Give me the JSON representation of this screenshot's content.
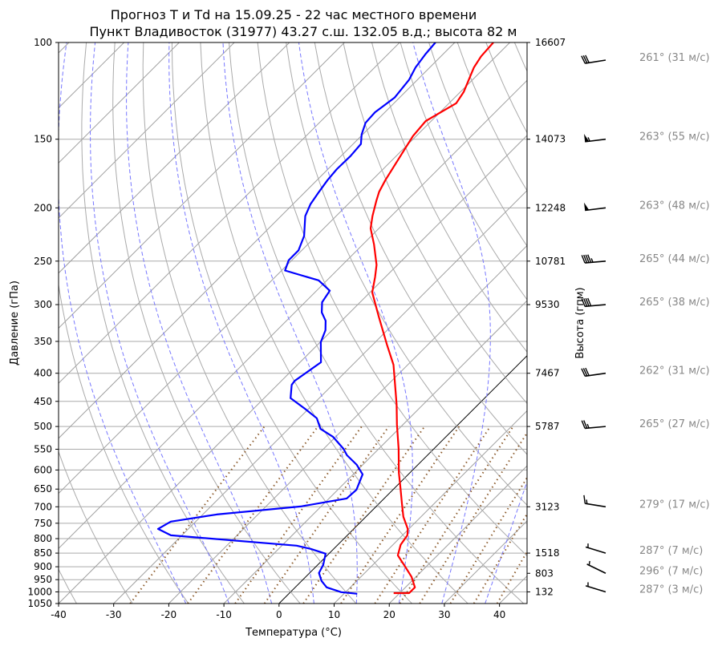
{
  "chart_data": {
    "type": "line",
    "subtype": "skew-t log-p",
    "title": "Прогноз T и Td на 15.09.25 - 22 час местного времени",
    "subtitle": "Пункт Владивосток (31977) 43.27 с.ш. 132.05 в.д.; высота 82 м",
    "xlabel": "Температура (°C)",
    "ylabel": "Давление (гПа)",
    "ylabel_right": "Высота (гпм)",
    "xlim": [
      -40,
      45
    ],
    "ylim": [
      1050,
      100
    ],
    "x_ticks": [
      -40,
      -30,
      -20,
      -10,
      0,
      10,
      20,
      30,
      40
    ],
    "y_ticks": [
      100,
      150,
      200,
      250,
      300,
      350,
      400,
      450,
      500,
      550,
      600,
      650,
      700,
      750,
      800,
      850,
      900,
      950,
      1000,
      1050
    ],
    "height_ticks": [
      {
        "p": 100,
        "h": "16607"
      },
      {
        "p": 150,
        "h": "14073"
      },
      {
        "p": 200,
        "h": "12248"
      },
      {
        "p": 250,
        "h": "10781"
      },
      {
        "p": 300,
        "h": "9530"
      },
      {
        "p": 400,
        "h": "7467"
      },
      {
        "p": 500,
        "h": "5787"
      },
      {
        "p": 700,
        "h": "3123"
      },
      {
        "p": 850,
        "h": "1518"
      },
      {
        "p": 925,
        "h": "803"
      },
      {
        "p": 1000,
        "h": "132"
      }
    ],
    "colors": {
      "temperature": "#ff0000",
      "dewpoint": "#0000ff",
      "isotherm": "#a0a0a0",
      "zero_isotherm": "#000000",
      "moist_adiabat": "#7777ff",
      "mixing_ratio": "#8b5a2b"
    },
    "series": [
      {
        "name": "T",
        "color": "#ff0000",
        "points": [
          [
            1005,
            18.9
          ],
          [
            1005,
            21.7
          ],
          [
            981,
            21.7
          ],
          [
            939,
            19.2
          ],
          [
            896,
            15.9
          ],
          [
            858,
            12.8
          ],
          [
            821,
            11.4
          ],
          [
            789,
            10.9
          ],
          [
            768,
            9.8
          ],
          [
            730,
            6.8
          ],
          [
            690,
            4.1
          ],
          [
            645,
            0.9
          ],
          [
            607,
            -2.0
          ],
          [
            549,
            -6.4
          ],
          [
            496,
            -11.1
          ],
          [
            456,
            -14.8
          ],
          [
            386,
            -22.6
          ],
          [
            355,
            -27.4
          ],
          [
            315,
            -34.1
          ],
          [
            285,
            -39.6
          ],
          [
            267,
            -41.9
          ],
          [
            254,
            -43.8
          ],
          [
            233,
            -48.0
          ],
          [
            218,
            -51.5
          ],
          [
            207,
            -53.4
          ],
          [
            194,
            -55.5
          ],
          [
            187,
            -56.6
          ],
          [
            178,
            -57.6
          ],
          [
            148,
            -60.6
          ],
          [
            139,
            -61.0
          ],
          [
            129,
            -58.7
          ],
          [
            123,
            -59.4
          ],
          [
            111,
            -62.0
          ],
          [
            106,
            -62.7
          ],
          [
            100,
            -63.0
          ]
        ]
      },
      {
        "name": "Td",
        "color": "#0000ff",
        "points": [
          [
            1008,
            12.4
          ],
          [
            1001,
            9.2
          ],
          [
            981,
            5.7
          ],
          [
            955,
            3.6
          ],
          [
            924,
            1.7
          ],
          [
            893,
            1.0
          ],
          [
            852,
            -0.6
          ],
          [
            835,
            -4.2
          ],
          [
            824,
            -7.3
          ],
          [
            789,
            -32.0
          ],
          [
            768,
            -35.5
          ],
          [
            745,
            -34.5
          ],
          [
            723,
            -27.5
          ],
          [
            699,
            -13.7
          ],
          [
            676,
            -6.8
          ],
          [
            652,
            -6.6
          ],
          [
            611,
            -8.3
          ],
          [
            587,
            -11.1
          ],
          [
            564,
            -14.6
          ],
          [
            549,
            -16.4
          ],
          [
            522,
            -20.5
          ],
          [
            505,
            -24.2
          ],
          [
            483,
            -26.8
          ],
          [
            464,
            -30.7
          ],
          [
            444,
            -35.2
          ],
          [
            420,
            -37.4
          ],
          [
            413,
            -37.6
          ],
          [
            382,
            -36.2
          ],
          [
            351,
            -39.9
          ],
          [
            334,
            -41.2
          ],
          [
            321,
            -42.9
          ],
          [
            310,
            -45.1
          ],
          [
            297,
            -46.9
          ],
          [
            283,
            -47.6
          ],
          [
            271,
            -51.5
          ],
          [
            260,
            -59.4
          ],
          [
            249,
            -60.6
          ],
          [
            239,
            -60.6
          ],
          [
            225,
            -62.2
          ],
          [
            207,
            -65.6
          ],
          [
            197,
            -66.8
          ],
          [
            187,
            -67.5
          ],
          [
            178,
            -68.1
          ],
          [
            170,
            -68.4
          ],
          [
            161,
            -68.3
          ],
          [
            153,
            -68.6
          ],
          [
            147,
            -70.2
          ],
          [
            140,
            -71.6
          ],
          [
            134,
            -71.8
          ],
          [
            126,
            -70.9
          ],
          [
            117,
            -71.5
          ],
          [
            111,
            -72.6
          ],
          [
            105,
            -73.2
          ],
          [
            100,
            -73.5
          ]
        ]
      }
    ],
    "winds": [
      {
        "p": 100,
        "dir": 261,
        "speed": 31,
        "label": "261° (31 м/с)"
      },
      {
        "p": 150,
        "dir": 263,
        "speed": 55,
        "label": "263° (55 м/с)"
      },
      {
        "p": 200,
        "dir": 263,
        "speed": 48,
        "label": "263° (48 м/с)"
      },
      {
        "p": 250,
        "dir": 265,
        "speed": 44,
        "label": "265° (44 м/с)"
      },
      {
        "p": 300,
        "dir": 265,
        "speed": 38,
        "label": "265° (38 м/с)"
      },
      {
        "p": 400,
        "dir": 262,
        "speed": 31,
        "label": "262° (31 м/с)"
      },
      {
        "p": 500,
        "dir": 265,
        "speed": 27,
        "label": "265° (27 м/с)"
      },
      {
        "p": 700,
        "dir": 279,
        "speed": 17,
        "label": "279° (17 м/с)"
      },
      {
        "p": 850,
        "dir": 287,
        "speed": 7,
        "label": "287° (7 м/с)"
      },
      {
        "p": 925,
        "dir": 296,
        "speed": 7,
        "label": "296° (7 м/с)"
      },
      {
        "p": 1000,
        "dir": 287,
        "speed": 3,
        "label": "287° (3 м/с)"
      }
    ],
    "grid": true
  }
}
